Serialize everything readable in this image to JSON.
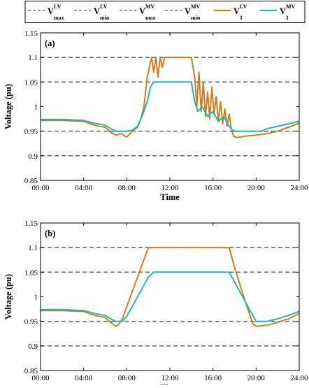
{
  "colors": {
    "limit": "#6b6b6b",
    "lv": "#d47b1e",
    "mv": "#20b8b4",
    "axis": "#000000",
    "background": "#ffffff"
  },
  "legend": [
    {
      "base": "V",
      "sup": "LV",
      "sub": "max",
      "style": "dashed",
      "color_key": "limit"
    },
    {
      "base": "V",
      "sup": "LV",
      "sub": "min",
      "style": "dashed",
      "color_key": "limit"
    },
    {
      "base": "V",
      "sup": "MV",
      "sub": "max",
      "style": "dashed",
      "color_key": "limit"
    },
    {
      "base": "V",
      "sup": "MV",
      "sub": "min",
      "style": "dashed",
      "color_key": "limit"
    },
    {
      "base": "V",
      "sup": "LV",
      "sub": "1",
      "style": "solid",
      "color_key": "lv"
    },
    {
      "base": "V",
      "sup": "MV",
      "sub": "1",
      "style": "solid",
      "color_key": "mv"
    }
  ],
  "chart_data": [
    {
      "type": "line",
      "panel_label": "(a)",
      "xlabel": "Time",
      "ylabel": "Voltage (pu)",
      "xlim": [
        0,
        24
      ],
      "ylim": [
        0.85,
        1.15
      ],
      "xticks": [
        0,
        4,
        8,
        12,
        16,
        20,
        24
      ],
      "xtick_labels": [
        "00:00",
        "04:00",
        "08:00",
        "12:00",
        "16:00",
        "20:00",
        "24:00"
      ],
      "yticks": [
        0.85,
        0.9,
        0.95,
        1.0,
        1.05,
        1.1,
        1.15
      ],
      "ytick_labels": [
        "0.85",
        "0.9",
        "0.95",
        "1",
        "1.05",
        "1.1",
        "1.15"
      ],
      "grid": false,
      "limits": [
        {
          "name": "V_max^LV",
          "value": 1.1
        },
        {
          "name": "V_min^LV",
          "value": 0.9
        },
        {
          "name": "V_max^MV",
          "value": 1.05
        },
        {
          "name": "V_min^MV",
          "value": 0.95
        }
      ],
      "series": [
        {
          "name": "V_1^LV",
          "color_key": "lv",
          "x": [
            0,
            2,
            4,
            5,
            6,
            6.5,
            7,
            7.5,
            8,
            8.5,
            9,
            9.3,
            9.6,
            9.9,
            10.1,
            10.3,
            10.5,
            10.7,
            10.9,
            11.1,
            11.3,
            11.5,
            11.8,
            12,
            13,
            14,
            14.3,
            14.5,
            14.7,
            14.9,
            15.1,
            15.3,
            15.5,
            15.7,
            15.9,
            16.1,
            16.3,
            16.5,
            16.7,
            16.9,
            17.1,
            17.3,
            17.5,
            17.7,
            17.9,
            18.2,
            19,
            20,
            21,
            22,
            23,
            24
          ],
          "y": [
            0.972,
            0.972,
            0.97,
            0.962,
            0.958,
            0.948,
            0.942,
            0.945,
            0.938,
            0.95,
            0.958,
            0.975,
            1.0,
            1.06,
            1.08,
            1.1,
            1.07,
            1.1,
            1.06,
            1.1,
            1.08,
            1.1,
            1.1,
            1.1,
            1.1,
            1.1,
            1.06,
            1.0,
            1.07,
            0.99,
            1.05,
            0.98,
            1.03,
            0.975,
            1.04,
            0.985,
            1.02,
            0.97,
            1.01,
            0.965,
            0.995,
            0.96,
            0.985,
            0.955,
            0.94,
            0.937,
            0.94,
            0.942,
            0.945,
            0.95,
            0.958,
            0.966
          ]
        },
        {
          "name": "V_1^MV",
          "color_key": "mv",
          "x": [
            0,
            2,
            4,
            5,
            6,
            6.5,
            7,
            7.5,
            8,
            8.5,
            9,
            9.5,
            9.9,
            10.2,
            10.5,
            11,
            12,
            13,
            14,
            14.3,
            14.6,
            15,
            15.5,
            16,
            16.5,
            17,
            17.5,
            17.8,
            18,
            19,
            20,
            20.5,
            21,
            22,
            23,
            24
          ],
          "y": [
            0.974,
            0.974,
            0.972,
            0.966,
            0.962,
            0.955,
            0.95,
            0.95,
            0.95,
            0.952,
            0.96,
            0.985,
            1.01,
            1.04,
            1.05,
            1.05,
            1.05,
            1.05,
            1.05,
            1.01,
            0.99,
            1.0,
            0.98,
            0.99,
            0.97,
            0.98,
            0.96,
            0.952,
            0.95,
            0.95,
            0.95,
            0.95,
            0.955,
            0.96,
            0.965,
            0.97
          ]
        }
      ]
    },
    {
      "type": "line",
      "panel_label": "(b)",
      "xlabel": "Time",
      "ylabel": "Voltage (pu)",
      "xlim": [
        0,
        24
      ],
      "ylim": [
        0.85,
        1.15
      ],
      "xticks": [
        0,
        4,
        8,
        12,
        16,
        20,
        24
      ],
      "xtick_labels": [
        "00:00",
        "04:00",
        "08:00",
        "12:00",
        "16:00",
        "20:00",
        "24:00"
      ],
      "yticks": [
        0.85,
        0.9,
        0.95,
        1.0,
        1.05,
        1.1,
        1.15
      ],
      "ytick_labels": [
        "0.85",
        "0.9",
        "0.95",
        "1",
        "1.05",
        "1.1",
        "1.15"
      ],
      "grid": false,
      "limits": [
        {
          "name": "V_max^LV",
          "value": 1.1
        },
        {
          "name": "V_min^LV",
          "value": 0.9
        },
        {
          "name": "V_max^MV",
          "value": 1.05
        },
        {
          "name": "V_min^MV",
          "value": 0.95
        }
      ],
      "series": [
        {
          "name": "V_1^LV",
          "color_key": "lv",
          "x": [
            0,
            2,
            4,
            5,
            6,
            6.5,
            7,
            7.3,
            7.6,
            8,
            9,
            9.5,
            10,
            11,
            12,
            14,
            16,
            17,
            17.5,
            18,
            19,
            19.7,
            20,
            21,
            22,
            23,
            24
          ],
          "y": [
            0.972,
            0.972,
            0.97,
            0.962,
            0.958,
            0.948,
            0.94,
            0.945,
            0.955,
            0.98,
            1.04,
            1.07,
            1.1,
            1.1,
            1.1,
            1.1,
            1.1,
            1.1,
            1.1,
            1.06,
            0.99,
            0.945,
            0.94,
            0.942,
            0.948,
            0.955,
            0.966
          ]
        },
        {
          "name": "V_1^MV",
          "color_key": "mv",
          "x": [
            0,
            2,
            4,
            5,
            6,
            6.5,
            7,
            7.3,
            7.6,
            8,
            9,
            10,
            10.5,
            11,
            12,
            14,
            16,
            17,
            17.5,
            18,
            19,
            20,
            21,
            22,
            23,
            24
          ],
          "y": [
            0.974,
            0.974,
            0.972,
            0.966,
            0.962,
            0.955,
            0.95,
            0.95,
            0.95,
            0.96,
            1.0,
            1.04,
            1.05,
            1.05,
            1.05,
            1.05,
            1.05,
            1.05,
            1.05,
            1.03,
            0.99,
            0.95,
            0.95,
            0.955,
            0.962,
            0.97
          ]
        }
      ]
    }
  ]
}
